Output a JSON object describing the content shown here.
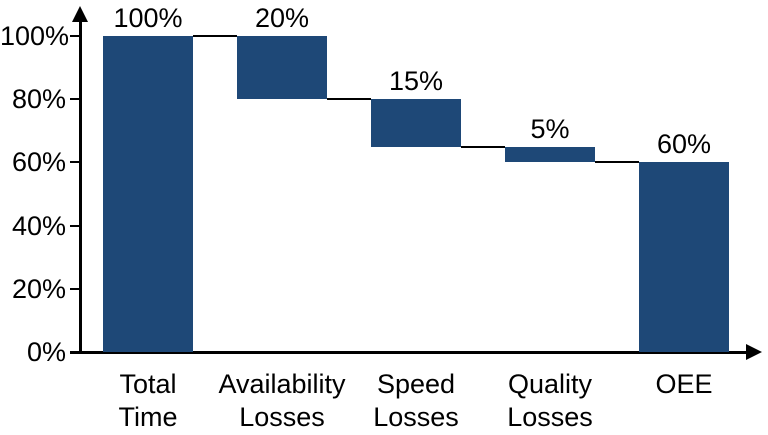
{
  "chart_data": {
    "type": "bar",
    "subtype": "waterfall",
    "title": "",
    "categories": [
      [
        "Total",
        "Time"
      ],
      [
        "Availability",
        "Losses"
      ],
      [
        "Speed",
        "Losses"
      ],
      [
        "Quality",
        "Losses"
      ],
      [
        "OEE"
      ]
    ],
    "segments": [
      {
        "category": "Total Time",
        "label": "100%",
        "from": 0,
        "to": 100
      },
      {
        "category": "Availability Losses",
        "label": "20%",
        "from": 100,
        "to": 80
      },
      {
        "category": "Speed Losses",
        "label": "15%",
        "from": 80,
        "to": 65
      },
      {
        "category": "Quality Losses",
        "label": "5%",
        "from": 65,
        "to": 60
      },
      {
        "category": "OEE",
        "label": "60%",
        "from": 0,
        "to": 60
      }
    ],
    "y_ticks": [
      {
        "value": 0,
        "label": "0%"
      },
      {
        "value": 20,
        "label": "20%"
      },
      {
        "value": 40,
        "label": "40%"
      },
      {
        "value": 60,
        "label": "60%"
      },
      {
        "value": 80,
        "label": "80%"
      },
      {
        "value": 100,
        "label": "100%"
      }
    ],
    "ylim": [
      0,
      100
    ],
    "xlabel": "",
    "ylabel": "",
    "legend": "none",
    "grid": false,
    "bar_color": "#1E4877",
    "axis_color": "#000000",
    "connector_color": "#000000",
    "text_color": "#000000",
    "background_color": "#FFFFFF"
  }
}
